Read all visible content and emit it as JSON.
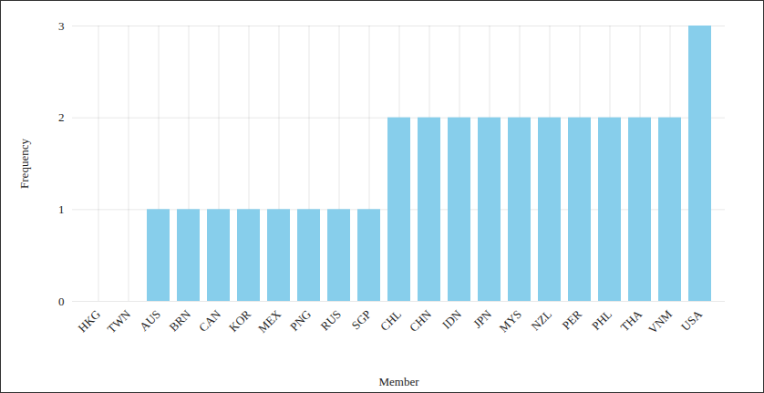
{
  "chart_data": {
    "type": "bar",
    "x_label": "Member",
    "y_label": "Frequency",
    "categories": [
      "HKG",
      "TWN",
      "AUS",
      "BRN",
      "CAN",
      "KOR",
      "MEX",
      "PNG",
      "RUS",
      "SGP",
      "CHL",
      "CHN",
      "IDN",
      "JPN",
      "MYS",
      "NZL",
      "PER",
      "PHL",
      "THA",
      "VNM",
      "USA"
    ],
    "values": [
      0,
      0,
      1,
      1,
      1,
      1,
      1,
      1,
      1,
      1,
      2,
      2,
      2,
      2,
      2,
      2,
      2,
      2,
      2,
      2,
      3
    ],
    "color": "#87ceeb",
    "ylim": [
      0,
      3
    ],
    "yticks": [
      0,
      1,
      2,
      3
    ],
    "grid": true
  }
}
